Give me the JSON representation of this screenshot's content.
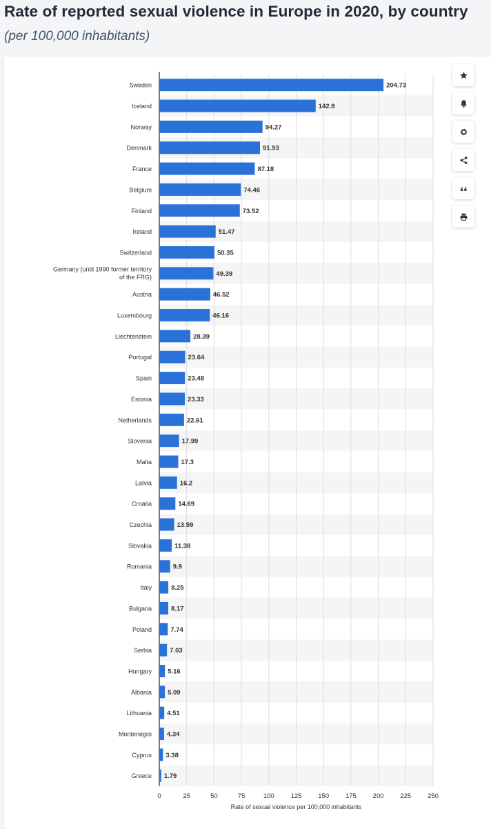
{
  "page": {
    "title": "Rate of reported sexual violence in Europe in 2020, by country",
    "subtitle": "(per 100,000 inhabitants)"
  },
  "toolbar": {
    "icons": [
      "star-icon",
      "bell-icon",
      "gear-icon",
      "share-icon",
      "quote-icon",
      "print-icon"
    ]
  },
  "colors": {
    "bar": "#2a72d8",
    "stripe": "#f5f5f5",
    "grid": "#dddddd",
    "axis_line": "#2b3a4a",
    "label": "#333333",
    "value_label": "#333333"
  },
  "chart_data": {
    "type": "bar",
    "orientation": "horizontal",
    "title": "Rate of reported sexual violence in Europe in 2020, by country",
    "subtitle": "(per 100,000 inhabitants)",
    "xlabel": "Rate of sexual violence per 100,000 inhabitants",
    "ylabel": "",
    "xlim": [
      0,
      250
    ],
    "xticks": [
      0,
      25,
      50,
      75,
      100,
      125,
      150,
      175,
      200,
      225,
      250
    ],
    "grid": true,
    "categories": [
      "Sweden",
      "Iceland",
      "Norway",
      "Denmark",
      "France",
      "Belgium",
      "Finland",
      "Ireland",
      "Switzerland",
      "Germany (until 1990 former territory of the FRG)",
      "Austria",
      "Luxembourg",
      "Liechtenstein",
      "Portugal",
      "Spain",
      "Estonia",
      "Netherlands",
      "Slovenia",
      "Malta",
      "Latvia",
      "Croatia",
      "Czechia",
      "Slovakia",
      "Romania",
      "Italy",
      "Bulgaria",
      "Poland",
      "Serbia",
      "Hungary",
      "Albania",
      "Lithuania",
      "Montenegro",
      "Cyprus",
      "Greece"
    ],
    "values": [
      204.73,
      142.8,
      94.27,
      91.93,
      87.18,
      74.46,
      73.52,
      51.47,
      50.35,
      49.39,
      46.52,
      46.16,
      28.39,
      23.64,
      23.48,
      23.33,
      22.61,
      17.99,
      17.3,
      16.2,
      14.69,
      13.59,
      11.38,
      9.9,
      8.25,
      8.17,
      7.74,
      7.03,
      5.16,
      5.09,
      4.51,
      4.34,
      3.38,
      1.79
    ]
  }
}
